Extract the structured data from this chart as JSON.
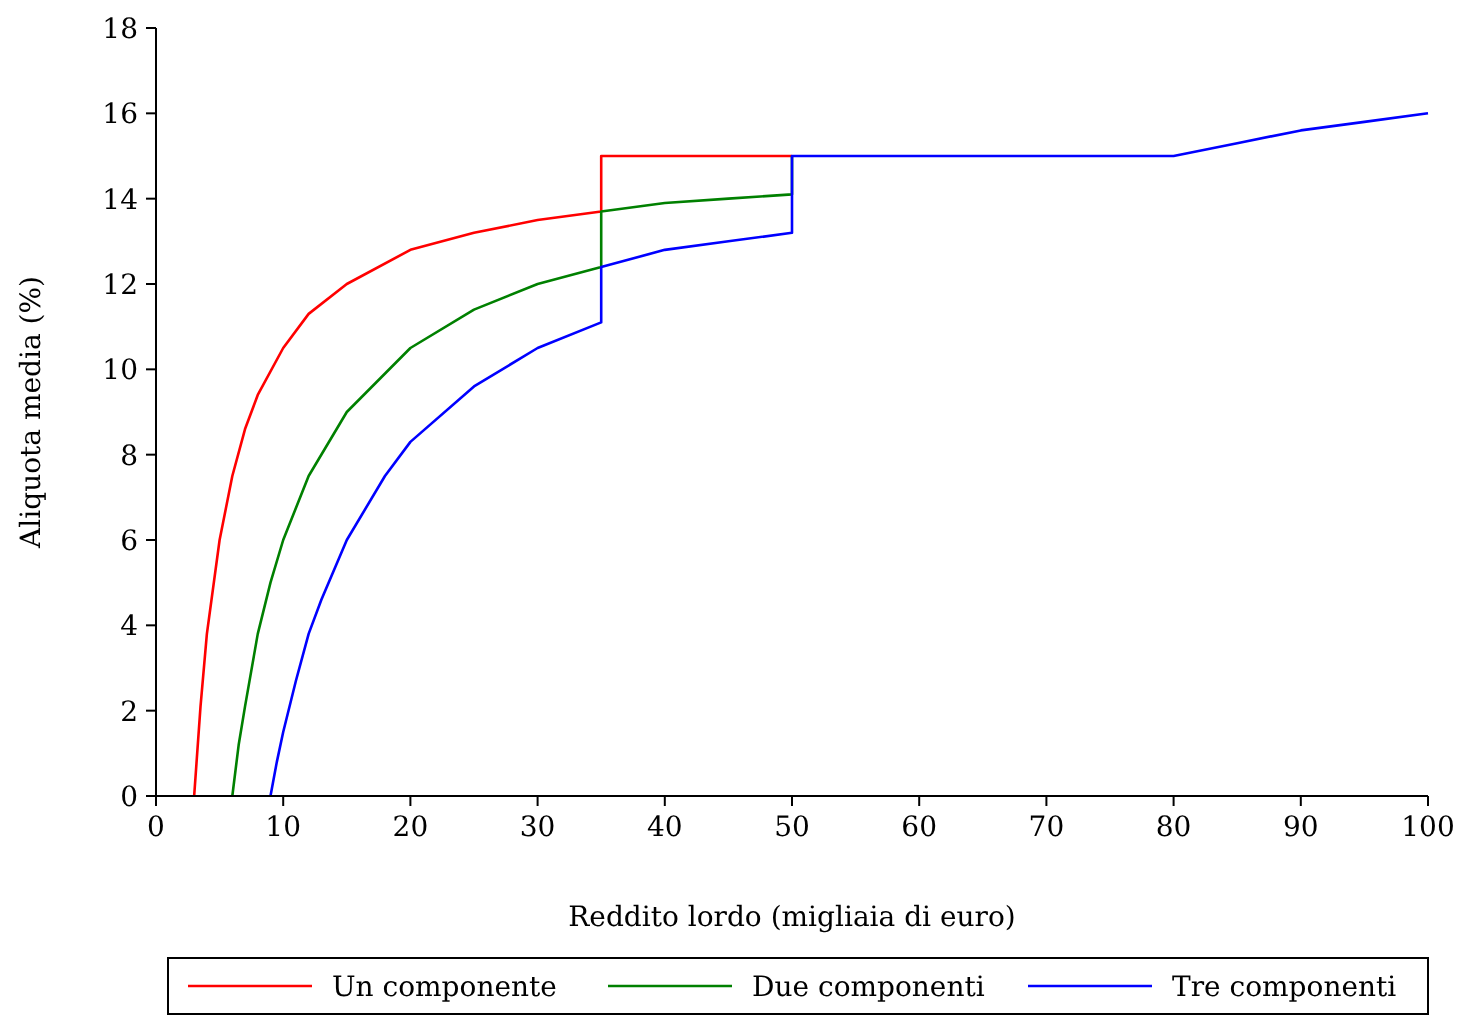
{
  "chart_data": {
    "type": "line",
    "xlabel": "Reddito lordo (migliaia di euro)",
    "ylabel": "Aliquota media (%)",
    "xlim": [
      0,
      100
    ],
    "xticks": [
      0,
      10,
      20,
      30,
      40,
      50,
      60,
      70,
      80,
      90,
      100
    ],
    "ylim": [
      0,
      18
    ],
    "yticks": [
      0,
      2,
      4,
      6,
      8,
      10,
      12,
      14,
      16,
      18
    ],
    "grid": false,
    "legend": "bottom",
    "marker": "none",
    "line_style": "solid",
    "series": [
      {
        "name": "Un componente",
        "color": "#ff0000",
        "x": [
          3,
          3.5,
          4,
          5,
          6,
          7,
          8,
          10,
          12,
          15,
          20,
          25,
          30,
          35,
          35,
          50
        ],
        "values": [
          0,
          2.1,
          3.8,
          6,
          7.5,
          8.6,
          9.4,
          10.5,
          11.3,
          12,
          12.8,
          13.2,
          13.5,
          13.7,
          15,
          15
        ]
      },
      {
        "name": "Due componenti",
        "color": "#008000",
        "x": [
          6,
          6.5,
          7,
          8,
          9,
          10,
          12,
          15,
          20,
          25,
          30,
          35,
          35,
          40,
          45,
          50,
          50
        ],
        "values": [
          0,
          1.2,
          2.1,
          3.8,
          5,
          6,
          7.5,
          9,
          10.5,
          11.4,
          12,
          12.4,
          13.7,
          13.9,
          14,
          14.1,
          15
        ]
      },
      {
        "name": "Tre componenti",
        "color": "#0000ff",
        "x": [
          9,
          9.5,
          10,
          11,
          12,
          13,
          15,
          18,
          20,
          25,
          30,
          35,
          35,
          40,
          45,
          50,
          50,
          80,
          85,
          90,
          95,
          100
        ],
        "values": [
          0,
          0.8,
          1.5,
          2.7,
          3.8,
          4.6,
          6,
          7.5,
          8.3,
          9.6,
          10.5,
          11.1,
          12.4,
          12.8,
          13,
          13.2,
          15,
          15,
          15.3,
          15.6,
          15.8,
          16
        ]
      }
    ]
  }
}
